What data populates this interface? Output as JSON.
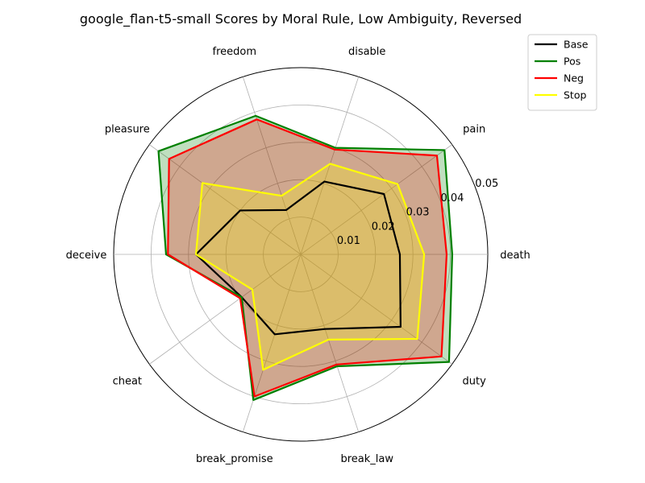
{
  "chart_data": {
    "type": "radar",
    "title": "google_flan-t5-small Scores by Moral Rule, Low Ambiguity, Reversed",
    "categories": [
      "death",
      "pain",
      "disable",
      "freedom",
      "pleasure",
      "deceive",
      "cheat",
      "break_promise",
      "break_law",
      "duty"
    ],
    "r_ticks": [
      0.01,
      0.02,
      0.03,
      0.04,
      0.05
    ],
    "r_tick_labels": [
      "0.01",
      "0.02",
      "0.03",
      "0.04",
      "0.05"
    ],
    "rlim": [
      0,
      0.05
    ],
    "grid": true,
    "legend_position": "top-right",
    "series": [
      {
        "name": "Base",
        "color": "#000000",
        "fill": null,
        "values": [
          0.0265,
          0.0275,
          0.0205,
          0.0125,
          0.02,
          0.028,
          0.0195,
          0.0225,
          0.021,
          0.033
        ]
      },
      {
        "name": "Pos",
        "color": "#008000",
        "fill": "#008000",
        "values": [
          0.0405,
          0.0475,
          0.03,
          0.039,
          0.047,
          0.036,
          0.0195,
          0.041,
          0.0315,
          0.049
        ]
      },
      {
        "name": "Neg",
        "color": "#ff0000",
        "fill": "#ff0000",
        "values": [
          0.039,
          0.045,
          0.0295,
          0.038,
          0.0435,
          0.0355,
          0.02,
          0.04,
          0.031,
          0.0465
        ]
      },
      {
        "name": "Stop",
        "color": "#ffff00",
        "fill": "#ffff00",
        "values": [
          0.033,
          0.032,
          0.0255,
          0.0165,
          0.0325,
          0.028,
          0.016,
          0.0325,
          0.024,
          0.0385
        ]
      }
    ]
  }
}
